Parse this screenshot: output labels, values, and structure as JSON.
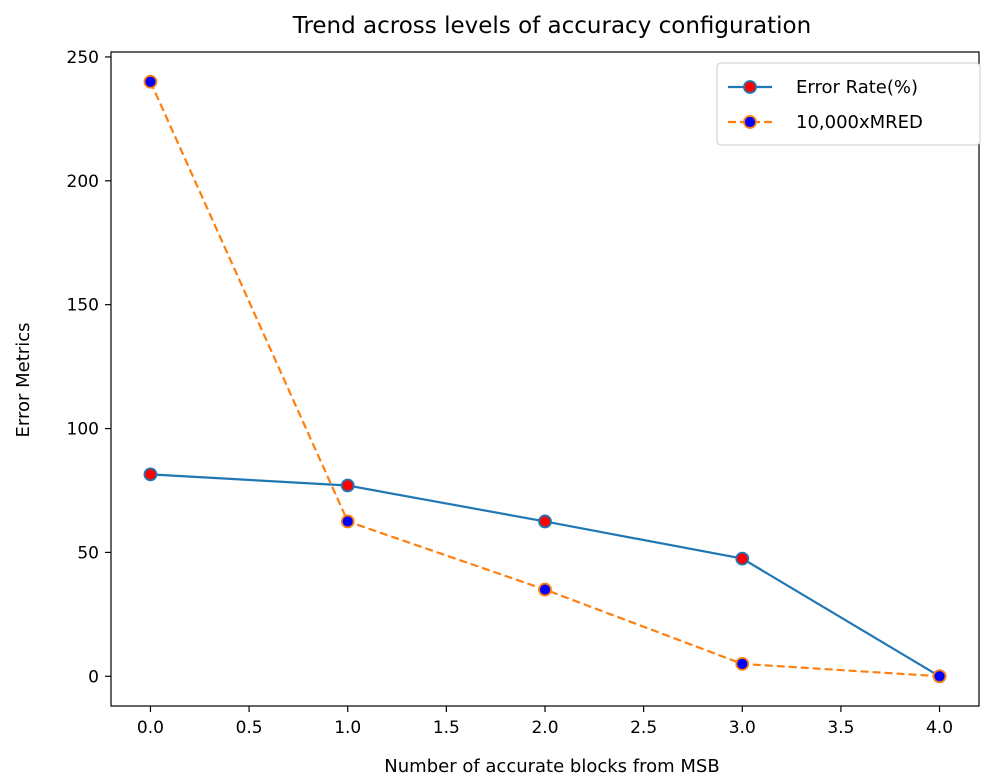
{
  "chart_data": {
    "type": "line",
    "title": "Trend across levels of accuracy configuration",
    "xlabel": "Number of accurate blocks from MSB",
    "ylabel": "Error Metrics",
    "xlim": [
      -0.2,
      4.2
    ],
    "ylim": [
      -12,
      252
    ],
    "xticks": [
      0.0,
      0.5,
      1.0,
      1.5,
      2.0,
      2.5,
      3.0,
      3.5,
      4.0
    ],
    "xtick_labels": [
      "0.0",
      "0.5",
      "1.0",
      "1.5",
      "2.0",
      "2.5",
      "3.0",
      "3.5",
      "4.0"
    ],
    "yticks": [
      0,
      50,
      100,
      150,
      200,
      250
    ],
    "ytick_labels": [
      "0",
      "50",
      "100",
      "150",
      "200",
      "250"
    ],
    "grid": false,
    "legend_position": "top-right",
    "x": [
      0,
      1,
      2,
      3,
      4
    ],
    "series": [
      {
        "name": "Error Rate(%)",
        "values": [
          81.5,
          77,
          62.5,
          47.5,
          0
        ],
        "color": "#1f77b4",
        "line_style": "solid",
        "marker_fill": "#ff0000",
        "marker_edge": "#1f77b4"
      },
      {
        "name": "10,000xMRED",
        "values": [
          240,
          62.5,
          35,
          5,
          0
        ],
        "color": "#ff7f0e",
        "line_style": "dashed",
        "marker_fill": "#0000ff",
        "marker_edge": "#ff7f0e"
      }
    ]
  }
}
